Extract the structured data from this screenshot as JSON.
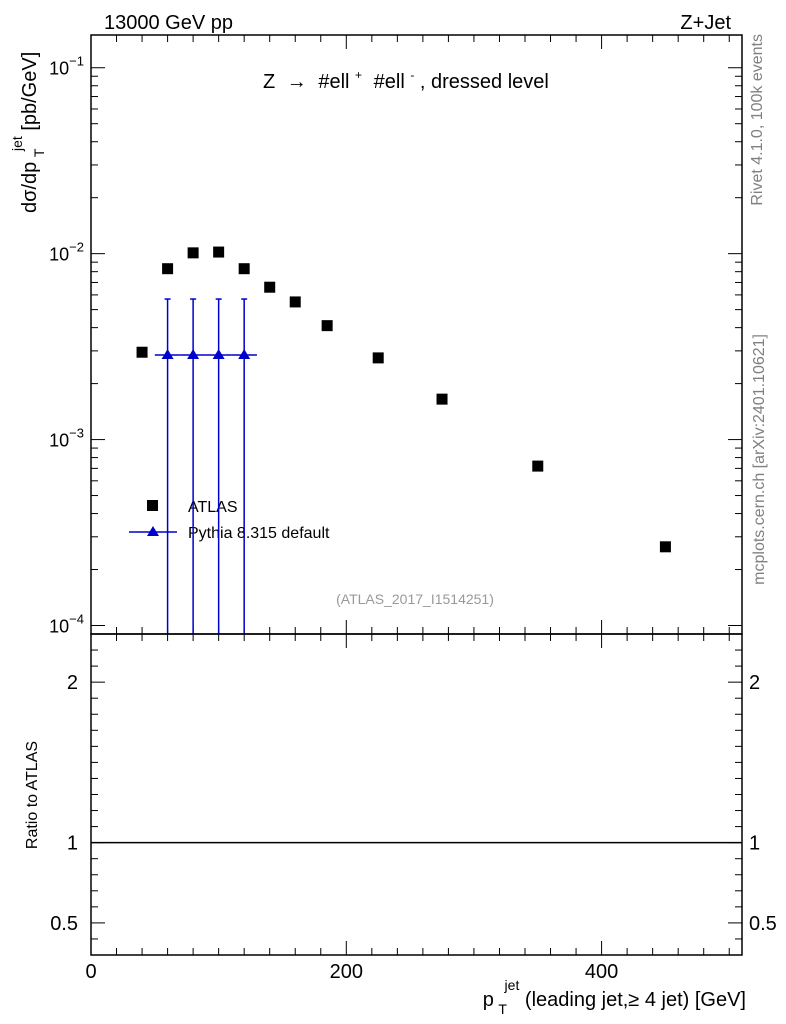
{
  "header": {
    "energy": "13000 GeV pp",
    "process": "Z+Jet"
  },
  "side_labels": {
    "rivet": "Rivet 4.1.0,  100k events",
    "source": "mcplots.cern.ch [arXiv:2401.10621]"
  },
  "analysis_id": "(ATLAS_2017_I1514251)",
  "chart_data": [
    {
      "type": "scatter",
      "panel": "main",
      "title": "Z → #ell⁺ #ell⁻, dressed level",
      "title_parts": {
        "z": "Z",
        "arrow": "→",
        "ell": "#ell",
        "plus": "+",
        "minus": "-",
        "rest": ", dressed level"
      },
      "ylabel": "dσ/dp",
      "ylabel_parts": {
        "main": "dσ/dp",
        "sub": "T",
        "sup": "jet",
        "unit": " [pb/GeV]"
      },
      "yscale": "log",
      "ylim": [
        9e-05,
        0.15
      ],
      "xlim": [
        0,
        510
      ],
      "yticks": [
        {
          "value": 0.1,
          "base": "10",
          "exp": "−1"
        },
        {
          "value": 0.01,
          "base": "10",
          "exp": "−2"
        },
        {
          "value": 0.001,
          "base": "10",
          "exp": "−3"
        },
        {
          "value": 0.0001,
          "base": "10",
          "exp": "−4"
        }
      ],
      "legend_position": "lower-left",
      "series": [
        {
          "name": "ATLAS",
          "marker": "square",
          "color": "#000000",
          "x": [
            40,
            60,
            80,
            100,
            120,
            140,
            160,
            185,
            225,
            275,
            350,
            450
          ],
          "y": [
            0.00295,
            0.0083,
            0.0101,
            0.0102,
            0.0083,
            0.0066,
            0.0055,
            0.0041,
            0.00275,
            0.00165,
            0.00072,
            0.000265
          ]
        },
        {
          "name": "Pythia 8.315 default",
          "marker": "triangle",
          "color": "#0000cc",
          "x": [
            60,
            80,
            100,
            120
          ],
          "y": [
            0.00285,
            0.00285,
            0.00285,
            0.00285
          ],
          "xerr": [
            10,
            10,
            10,
            10
          ],
          "yerr_low": [
            0.00285,
            0.00285,
            0.00285,
            0.00285
          ],
          "yerr_high": [
            0.00285,
            0.00285,
            0.00285,
            0.00285
          ]
        }
      ]
    },
    {
      "type": "line",
      "panel": "ratio",
      "ylabel": "Ratio to ATLAS",
      "xlabel": "p",
      "xlabel_parts": {
        "main": "p",
        "sub": "T",
        "sup": "jet",
        "rest": " (leading jet,≥ 4 jet) [GeV]"
      },
      "xlim": [
        0,
        510
      ],
      "ylim": [
        0.3,
        2.3
      ],
      "xticks": [
        {
          "value": 0,
          "label": "0"
        },
        {
          "value": 200,
          "label": "200"
        },
        {
          "value": 400,
          "label": "400"
        }
      ],
      "yticks": [
        {
          "value": 0.5,
          "label": "0.5"
        },
        {
          "value": 1,
          "label": "1"
        },
        {
          "value": 2,
          "label": "2"
        }
      ],
      "reference_line": 1
    }
  ]
}
